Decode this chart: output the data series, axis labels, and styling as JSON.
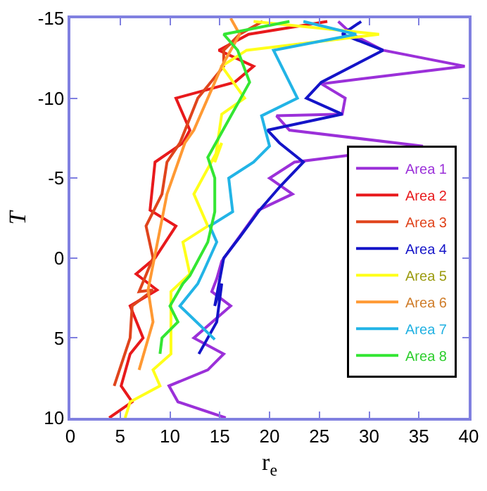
{
  "chart_data": {
    "type": "line",
    "xlabel": "r$_{e}$",
    "ylabel": "T",
    "xlim": [
      0,
      40
    ],
    "xticks": [
      0,
      5,
      10,
      15,
      20,
      25,
      30,
      35,
      40
    ],
    "ylim": [
      10,
      -15
    ],
    "yticks": [
      10,
      5,
      0,
      -5,
      -10,
      -15
    ],
    "legend": "bottom right",
    "marker": "none",
    "line_style": "solid",
    "series": [
      {
        "name": "Area 1",
        "color": "#9b30d9",
        "x": [
          15.6,
          10.8,
          9.9,
          13.8,
          15.4,
          12.4,
          16.1,
          14.2,
          14.7,
          15.2,
          18.9,
          22.3,
          20,
          22.5,
          35.4,
          22,
          20.7,
          27.3,
          27.6,
          25.2,
          39.6,
          31.4,
          28.3,
          26.9
        ],
        "values": [
          10,
          9,
          8,
          7,
          6,
          5,
          3,
          2.1,
          1.3,
          0.2,
          -3,
          -4,
          -5,
          -6,
          -7,
          -8,
          -8.9,
          -9,
          -10,
          -10.9,
          -12,
          -13,
          -14,
          -14.8
        ]
      },
      {
        "name": "Area 2",
        "color": "#e8191c",
        "x": [
          3.9,
          6.2,
          5.1,
          6,
          7.3,
          6,
          8.7,
          6.6,
          8.5,
          10.6,
          8,
          8.5,
          11.3,
          12,
          10.6,
          16.5,
          18.4,
          14.9,
          17.9,
          25.8
        ],
        "values": [
          10,
          9,
          8,
          6,
          5,
          3,
          2,
          1,
          0,
          -2,
          -3,
          -6,
          -7.2,
          -8,
          -10,
          -11,
          -12,
          -13,
          -14,
          -14.8
        ]
      },
      {
        "name": "Area 3",
        "color": "#e0441c",
        "x": [
          4.4,
          6,
          6.2,
          8.3,
          6.9,
          8.3,
          7.6,
          9.2,
          9.7,
          11,
          12.8,
          15.4,
          15.4,
          17,
          19.3
        ],
        "values": [
          8,
          5,
          3,
          2,
          2.1,
          0,
          -2,
          -4,
          -6,
          -7.2,
          -10,
          -12,
          -13,
          -14,
          -14.8
        ]
      },
      {
        "name": "Area 4",
        "color": "#1414c8",
        "x": [
          12.9,
          14.7,
          15.2,
          14.5,
          15.4,
          17,
          19,
          21.1,
          23.4,
          21,
          19.8,
          27.3,
          23.7,
          25.2,
          31.4,
          27.3,
          29.2
        ],
        "values": [
          6,
          4,
          1.6,
          3,
          0,
          -1.3,
          -3,
          -4.5,
          -6,
          -7.2,
          -8,
          -9,
          -10,
          -11,
          -13,
          -14,
          -14.8
        ]
      },
      {
        "name": "Area 5",
        "color": "#ffff1a",
        "x": [
          5.5,
          6,
          9,
          8.3,
          10.1,
          10.1,
          10.1,
          12,
          11.3,
          13.8,
          12.4,
          15.2,
          14.5,
          15.2,
          17.5,
          15.2,
          17.7,
          31,
          18.4
        ],
        "values": [
          10,
          9,
          8,
          7,
          6,
          3,
          2.1,
          1,
          -1,
          -2,
          -4,
          -7.2,
          -6,
          -9,
          -10,
          -12,
          -13,
          -14,
          -14.8
        ]
      },
      {
        "name": "Area 6",
        "color": "#ff9933",
        "x": [
          6.9,
          8.3,
          7.8,
          9.7,
          11.5,
          12.4,
          15.2,
          17,
          16.1
        ],
        "values": [
          7,
          4,
          2,
          -4,
          -7.2,
          -8,
          -12,
          -14,
          -15
        ]
      },
      {
        "name": "Area 7",
        "color": "#22b4e6",
        "x": [
          14.5,
          11,
          12.8,
          13.4,
          14.7,
          14,
          16.3,
          15.9,
          18.4,
          20,
          19.2,
          22.8,
          20.4,
          28.7,
          23.4
        ],
        "values": [
          5.1,
          3,
          1.6,
          0.8,
          -1,
          -2,
          -2.9,
          -5,
          -6,
          -7,
          -8.9,
          -10,
          -13,
          -14,
          -14.8
        ]
      },
      {
        "name": "Area 8",
        "color": "#33e633",
        "x": [
          9,
          9.2,
          10.8,
          10,
          11.3,
          12,
          13.8,
          14.5,
          14.5,
          13.8,
          18,
          16.8,
          15.4,
          22
        ],
        "values": [
          6,
          5,
          4,
          3,
          1.6,
          1.1,
          -1,
          -2.9,
          -5,
          -6.3,
          -11,
          -13,
          -14,
          -14.8
        ]
      }
    ]
  }
}
